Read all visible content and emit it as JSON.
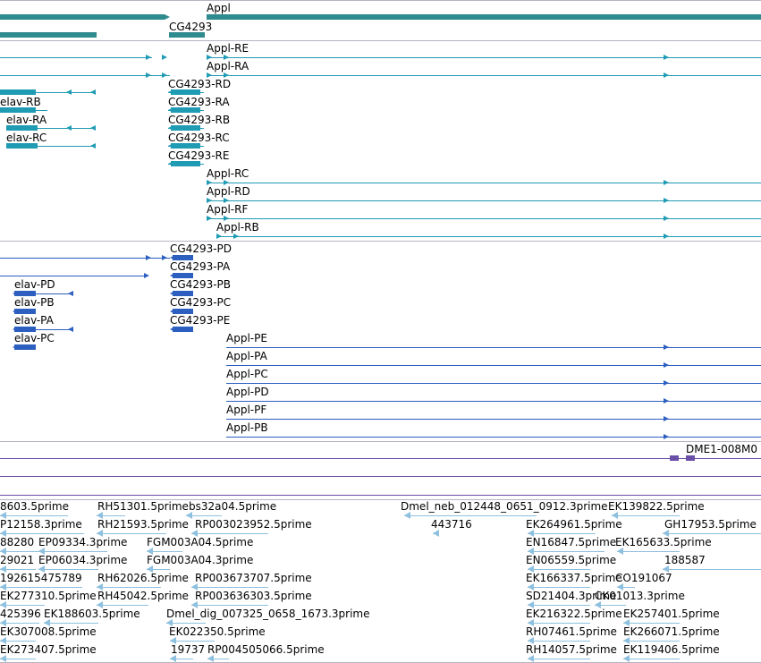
{
  "colors": {
    "gene": "#2e8b8e",
    "transcript": "#1f9bb4",
    "protein": "#2c5fbf",
    "probe": "#6a4fa8",
    "est": "#8ec0df",
    "separator": "#b4b4c4"
  },
  "tracks": {
    "genes": {
      "items": [
        {
          "name": "Appl"
        },
        {
          "name": "CG4293"
        }
      ]
    },
    "transcripts": {
      "items": [
        {
          "name": "Appl-RE"
        },
        {
          "name": "Appl-RA"
        },
        {
          "name": "CG4293-RD"
        },
        {
          "name": "elav-RB"
        },
        {
          "name": "CG4293-RA"
        },
        {
          "name": "elav-RA"
        },
        {
          "name": "CG4293-RB"
        },
        {
          "name": "elav-RC"
        },
        {
          "name": "CG4293-RC"
        },
        {
          "name": "CG4293-RE"
        },
        {
          "name": "Appl-RC"
        },
        {
          "name": "Appl-RD"
        },
        {
          "name": "Appl-RF"
        },
        {
          "name": "Appl-RB"
        }
      ]
    },
    "proteins": {
      "items": [
        {
          "name": "CG4293-PD"
        },
        {
          "name": "CG4293-PA"
        },
        {
          "name": "elav-PD"
        },
        {
          "name": "CG4293-PB"
        },
        {
          "name": "elav-PB"
        },
        {
          "name": "CG4293-PC"
        },
        {
          "name": "elav-PA"
        },
        {
          "name": "CG4293-PE"
        },
        {
          "name": "elav-PC"
        },
        {
          "name": "Appl-PE"
        },
        {
          "name": "Appl-PA"
        },
        {
          "name": "Appl-PC"
        },
        {
          "name": "Appl-PD"
        },
        {
          "name": "Appl-PF"
        },
        {
          "name": "Appl-PB"
        }
      ]
    },
    "probes": {
      "items": [
        {
          "name": "DME1-008M0"
        }
      ]
    },
    "ests": {
      "items": [
        {
          "name": "8603.5prime"
        },
        {
          "name": "RH51301.5prime"
        },
        {
          "name": "bs32a04.5prime"
        },
        {
          "name": "Dmel_neb_012448_0651_0912.3prime"
        },
        {
          "name": "EK139822.5prime"
        },
        {
          "name": "P12158.3prime"
        },
        {
          "name": "RH21593.5prime"
        },
        {
          "name": "RP003023952.5prime"
        },
        {
          "name": "443716"
        },
        {
          "name": "EK264961.5prime"
        },
        {
          "name": "GH17953.5prime"
        },
        {
          "name": "88280"
        },
        {
          "name": "EP09334.3prime"
        },
        {
          "name": "FGM003A04.5prime"
        },
        {
          "name": "EN16847.5prime"
        },
        {
          "name": "EK165633.5prime"
        },
        {
          "name": "29021"
        },
        {
          "name": "EP06034.3prime"
        },
        {
          "name": "FGM003A04.3prime"
        },
        {
          "name": "EN06559.5prime"
        },
        {
          "name": "188587"
        },
        {
          "name": "192615475789"
        },
        {
          "name": "RH62026.5prime"
        },
        {
          "name": "RP003673707.5prime"
        },
        {
          "name": "EK166337.5prime"
        },
        {
          "name": "CO191067"
        },
        {
          "name": "EK277310.5prime"
        },
        {
          "name": "RH45042.5prime"
        },
        {
          "name": "RP003636303.5prime"
        },
        {
          "name": "SD21404.3prime"
        },
        {
          "name": "CK01013.3prime"
        },
        {
          "name": "425396"
        },
        {
          "name": "EK188603.5prime"
        },
        {
          "name": "Dmel_dig_007325_0658_1673.3prime"
        },
        {
          "name": "EK216322.5prime"
        },
        {
          "name": "EK257401.5prime"
        },
        {
          "name": "EK307008.5prime"
        },
        {
          "name": "EK022350.5prime"
        },
        {
          "name": "RH07461.5prime"
        },
        {
          "name": "EK266071.5prime"
        },
        {
          "name": "EK273407.5prime"
        },
        {
          "name": "19737"
        },
        {
          "name": "RP004505066.5prime"
        },
        {
          "name": "RH14057.5prime"
        },
        {
          "name": "EK119406.5prime"
        }
      ]
    }
  }
}
